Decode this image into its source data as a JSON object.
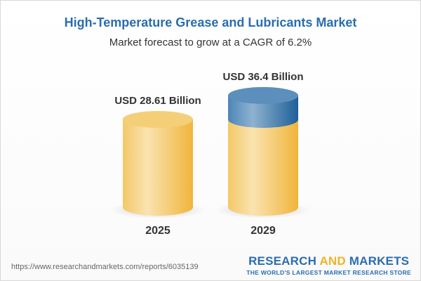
{
  "title": "High-Temperature Grease and Lubricants Market",
  "subtitle": "Market forecast to grow at a CAGR of 6.2%",
  "chart_data": {
    "type": "bar",
    "style": "3d-cylinder",
    "categories": [
      "2025",
      "2029"
    ],
    "values": [
      28.61,
      36.4
    ],
    "data_labels": [
      "USD 28.61 Billion",
      "USD 36.4 Billion"
    ],
    "unit": "USD Billion",
    "colors": {
      "base": "#f2c04d",
      "growth": "#3f7cb0"
    },
    "grid": false,
    "axes_visible": false
  },
  "footer": {
    "url": "https://www.researchandmarkets.com/reports/6035139",
    "logo": {
      "word1": "RESEARCH",
      "word2": "AND",
      "word3": "MARKETS",
      "tagline": "THE WORLD'S LARGEST MARKET RESEARCH STORE"
    }
  }
}
